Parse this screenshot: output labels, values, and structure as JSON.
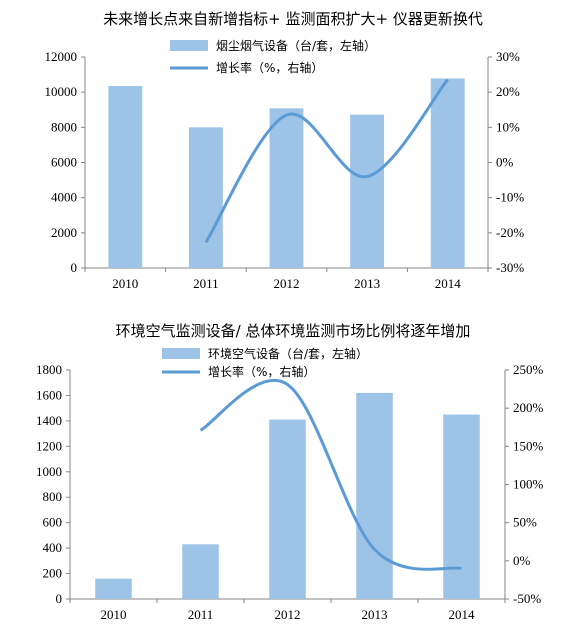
{
  "chart_data": [
    {
      "type": "bar",
      "title": "未来增长点来自新增指标+ 监测面积扩大+ 仪器更新换代",
      "categories": [
        "2010",
        "2011",
        "2012",
        "2013",
        "2014"
      ],
      "series": [
        {
          "name": "烟尘烟气设备（台/套，左轴）",
          "type": "bar",
          "axis": "left",
          "values": [
            10350,
            8000,
            9080,
            8720,
            10780
          ],
          "color": "#9dc3e6"
        },
        {
          "name": "增长率（%，右轴）",
          "type": "line",
          "axis": "right",
          "values": [
            null,
            -22.7,
            13.5,
            -4.0,
            23.6
          ],
          "color": "#5b9bd5"
        }
      ],
      "left_axis": {
        "ylim": [
          0,
          12000
        ],
        "ticks": [
          "0",
          "2000",
          "4000",
          "6000",
          "8000",
          "10000",
          "12000"
        ]
      },
      "right_axis": {
        "ylim": [
          -30,
          30
        ],
        "ticks": [
          "-30%",
          "-20%",
          "-10%",
          "0%",
          "10%",
          "20%",
          "30%"
        ]
      },
      "legend": "top-center",
      "grid": false
    },
    {
      "type": "bar",
      "title": "环境空气监测设备/ 总体环境监测市场比例将逐年增加",
      "categories": [
        "2010",
        "2011",
        "2012",
        "2013",
        "2014"
      ],
      "series": [
        {
          "name": "环境空气设备（台/套，左轴）",
          "type": "bar",
          "axis": "left",
          "values": [
            160,
            430,
            1410,
            1620,
            1450
          ],
          "color": "#9dc3e6"
        },
        {
          "name": "增长率（%，右轴）",
          "type": "line",
          "axis": "right",
          "values": [
            null,
            171,
            231,
            15,
            -10
          ],
          "color": "#5b9bd5"
        }
      ],
      "left_axis": {
        "ylim": [
          0,
          1800
        ],
        "ticks": [
          "0",
          "200",
          "400",
          "600",
          "800",
          "1000",
          "1200",
          "1400",
          "1600",
          "1800"
        ]
      },
      "right_axis": {
        "ylim": [
          -50,
          250
        ],
        "ticks": [
          "-50%",
          "0%",
          "50%",
          "100%",
          "150%",
          "200%",
          "250%"
        ]
      },
      "legend": "top-center",
      "grid": false
    }
  ]
}
